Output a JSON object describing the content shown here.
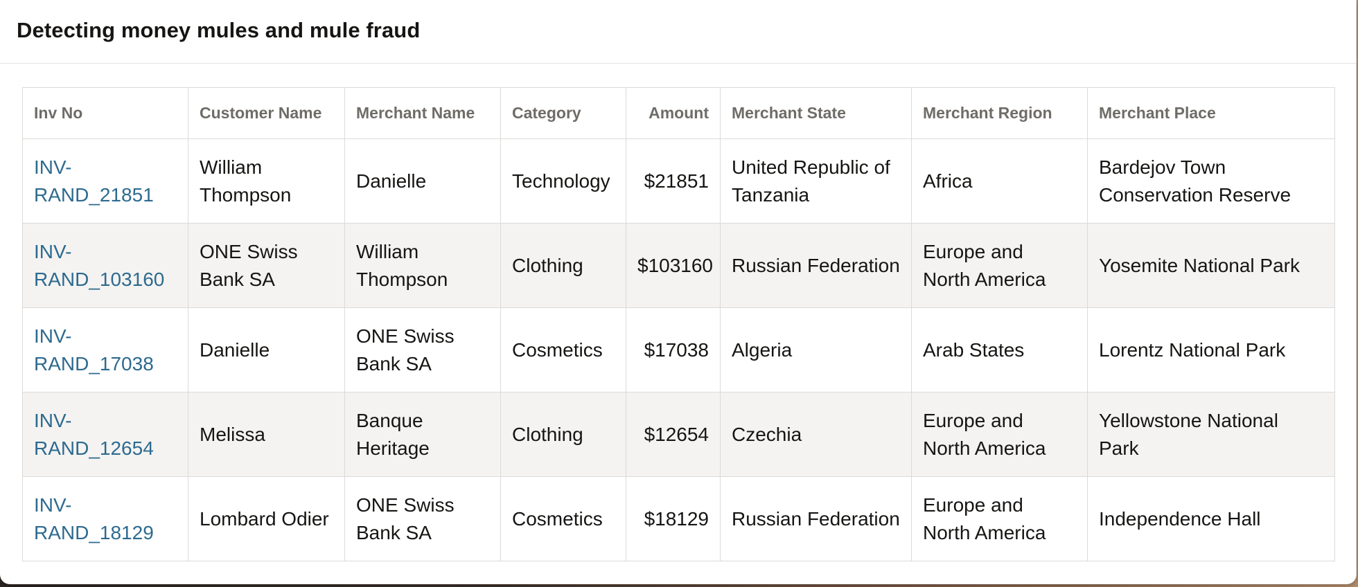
{
  "card": {
    "title": "Detecting money mules and mule fraud"
  },
  "table": {
    "headers": {
      "inv_no": "Inv No",
      "customer_name": "Customer Name",
      "merchant_name": "Merchant Name",
      "category": "Category",
      "amount": "Amount",
      "merchant_state": "Merchant State",
      "merchant_region": "Merchant Region",
      "merchant_place": "Merchant Place"
    },
    "rows": [
      {
        "inv_no": "INV-RAND_21851",
        "customer_name": "William Thompson",
        "merchant_name": "Danielle",
        "category": "Technology",
        "amount": "$21851",
        "merchant_state": "United Republic of Tanzania",
        "merchant_region": "Africa",
        "merchant_place": "Bardejov Town Conservation Reserve"
      },
      {
        "inv_no": "INV-RAND_103160",
        "customer_name": "ONE Swiss Bank SA",
        "merchant_name": "William Thompson",
        "category": "Clothing",
        "amount": "$103160",
        "merchant_state": "Russian Federation",
        "merchant_region": "Europe and North America",
        "merchant_place": "Yosemite National Park"
      },
      {
        "inv_no": "INV-RAND_17038",
        "customer_name": "Danielle",
        "merchant_name": "ONE Swiss Bank SA",
        "category": "Cosmetics",
        "amount": "$17038",
        "merchant_state": "Algeria",
        "merchant_region": "Arab States",
        "merchant_place": "Lorentz National Park"
      },
      {
        "inv_no": "INV-RAND_12654",
        "customer_name": "Melissa",
        "merchant_name": "Banque Heritage",
        "category": "Clothing",
        "amount": "$12654",
        "merchant_state": "Czechia",
        "merchant_region": "Europe and North America",
        "merchant_place": "Yellowstone National Park"
      },
      {
        "inv_no": "INV-RAND_18129",
        "customer_name": "Lombard Odier",
        "merchant_name": "ONE Swiss Bank SA",
        "category": "Cosmetics",
        "amount": "$18129",
        "merchant_state": "Russian Federation",
        "merchant_region": "Europe and North America",
        "merchant_place": "Independence Hall"
      }
    ]
  }
}
